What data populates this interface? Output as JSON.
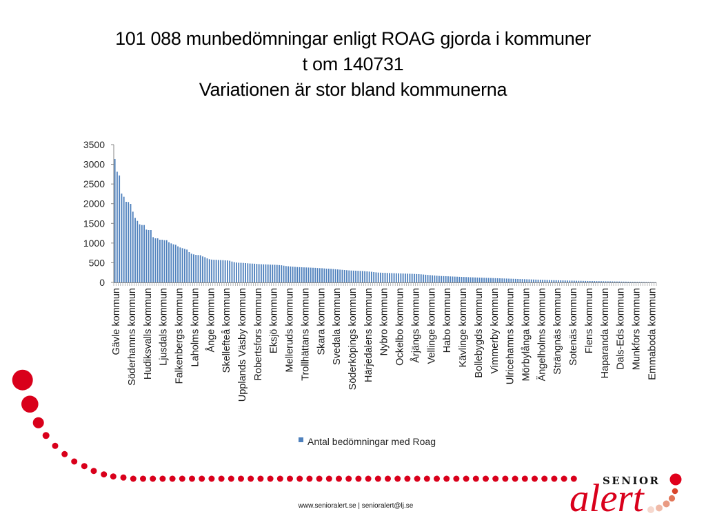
{
  "slide": {
    "title_lines": [
      "101 088 munbedömningar enligt ROAG gjorda i kommuner",
      "t om 140731",
      "Variationen är stor bland kommunerna"
    ],
    "footer": "www.senioralert.se | senioralert@lj.se",
    "logo": {
      "top": "SENIOR",
      "main": "alert"
    },
    "colors": {
      "accent_red": "#d9001b",
      "bar_blue": "#4f81bd",
      "axis_gray": "#868686"
    }
  },
  "chart_data": {
    "type": "bar",
    "title": "",
    "xlabel": "",
    "ylabel": "",
    "ylim": [
      0,
      3500
    ],
    "yticks": [
      0,
      500,
      1000,
      1500,
      2000,
      2500,
      3000,
      3500
    ],
    "grid": false,
    "legend_position": "bottom",
    "label_interval": 7,
    "categories_visible": [
      "Gävle kommun",
      "Söderhamns kommun",
      "Hudiksvalls kommun",
      "Ljusdals kommun",
      "Falkenbergs kommun",
      "Laholms kommun",
      "Ånge kommun",
      "Skellefteå kommun",
      "Upplands Väsby kommun",
      "Robertsfors kommun",
      "Eksjö kommun",
      "Melleruds kommun",
      "Trollhättans kommun",
      "Skara kommun",
      "Svedala kommun",
      "Söderköpings kommun",
      "Härjedalens kommun",
      "Nybro kommun",
      "Ockelbo kommun",
      "Årjängs kommun",
      "Vellinge kommun",
      "Habo kommun",
      "Kävlinge kommun",
      "Bollebygds kommun",
      "Vimmerby kommun",
      "Ulricehamns kommun",
      "Mörbylånga kommun",
      "Ängelholms kommun",
      "Strängnäs kommun",
      "Sotenäs kommun",
      "Flens kommun",
      "Haparanda kommun",
      "Dals-Eds kommun",
      "Munkfors kommun",
      "Emmaboda kommun"
    ],
    "series": [
      {
        "name": "Antal bedömningar med Roag",
        "color": "#4f81bd",
        "values": [
          3132,
          2812,
          2718,
          2257,
          2176,
          2048,
          2042,
          1995,
          1797,
          1640,
          1563,
          1476,
          1458,
          1458,
          1341,
          1330,
          1330,
          1149,
          1120,
          1120,
          1085,
          1085,
          1073,
          1073,
          1021,
          991,
          968,
          956,
          916,
          887,
          869,
          852,
          834,
          770,
          729,
          712,
          700,
          695,
          690,
          660,
          640,
          610,
          590,
          580,
          575,
          575,
          570,
          568,
          565,
          560,
          558,
          550,
          530,
          515,
          505,
          500,
          498,
          495,
          490,
          485,
          480,
          478,
          475,
          470,
          465,
          462,
          460,
          458,
          455,
          452,
          450,
          448,
          445,
          440,
          435,
          425,
          415,
          410,
          405,
          400,
          395,
          390,
          388,
          385,
          382,
          380,
          378,
          375,
          372,
          370,
          365,
          362,
          360,
          355,
          350,
          348,
          345,
          340,
          335,
          330,
          325,
          320,
          315,
          310,
          305,
          302,
          300,
          298,
          295,
          292,
          290,
          285,
          280,
          275,
          270,
          262,
          255,
          250,
          248,
          245,
          243,
          240,
          238,
          236,
          234,
          232,
          230,
          228,
          226,
          224,
          222,
          220,
          218,
          215,
          212,
          210,
          205,
          200,
          195,
          190,
          185,
          180,
          175,
          170,
          165,
          162,
          160,
          158,
          155,
          152,
          150,
          147,
          145,
          142,
          140,
          138,
          135,
          133,
          130,
          128,
          126,
          124,
          122,
          120,
          118,
          116,
          114,
          112,
          110,
          108,
          106,
          104,
          102,
          100,
          98,
          96,
          94,
          92,
          90,
          88,
          86,
          84,
          82,
          80,
          78,
          76,
          74,
          72,
          70,
          68,
          66,
          64,
          62,
          60,
          58,
          56,
          55,
          54,
          52,
          50,
          49,
          48,
          46,
          45,
          44,
          42,
          41,
          40,
          38,
          37,
          36,
          35,
          34,
          33,
          32,
          31,
          30,
          29,
          28,
          27,
          26,
          25,
          24,
          23,
          22,
          21,
          20,
          19,
          18,
          17,
          16,
          15,
          14,
          13,
          12,
          11,
          10,
          9,
          8,
          7,
          6
        ]
      }
    ]
  }
}
